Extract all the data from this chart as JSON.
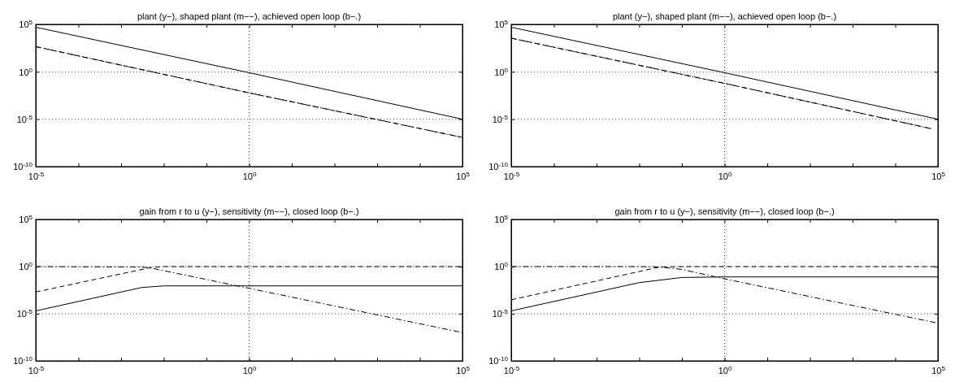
{
  "chart_data": [
    {
      "type": "line",
      "title": "plant (y−), shaped plant (m−−), achieved open loop (b−.)",
      "log": "xy",
      "grid": true,
      "xlim": [
        1e-05,
        100000.0
      ],
      "ylim": [
        1e-10,
        100000.0
      ],
      "xticks": [
        {
          "value": 1e-05,
          "label": "10$^{-5}$"
        },
        {
          "value": 0.0001,
          "label": null
        },
        {
          "value": 0.001,
          "label": null
        },
        {
          "value": 0.01,
          "label": null
        },
        {
          "value": 0.1,
          "label": null
        },
        {
          "value": 1,
          "label": "10$^{0}$"
        },
        {
          "value": 10,
          "label": null
        },
        {
          "value": 100,
          "label": null
        },
        {
          "value": 1000,
          "label": null
        },
        {
          "value": 10000,
          "label": null
        },
        {
          "value": 100000.0,
          "label": "10$^{5}$"
        }
      ],
      "yticks": [
        {
          "value": 1e-10,
          "label": "10$^{-10}$"
        },
        {
          "value": 1e-05,
          "label": "10$^{-5}$"
        },
        {
          "value": 1,
          "label": "10$^{0}$"
        },
        {
          "value": 100000.0,
          "label": "10$^{5}$"
        }
      ],
      "series": [
        {
          "color": "#000000",
          "line_style": "solid",
          "x": [
            1e-05,
            1,
            100000.0
          ],
          "values": [
            50000.0,
            0.8,
            1e-05
          ]
        },
        {
          "color": "#000000",
          "line_style": "dashed",
          "x": [
            1e-05,
            1,
            100000.0
          ],
          "values": [
            450,
            0.006,
            1.2e-07
          ]
        },
        {
          "color": "#000000",
          "line_style": "dashdot",
          "x": [
            1e-05,
            1,
            100000.0
          ],
          "values": [
            450,
            0.006,
            1.2e-07
          ]
        }
      ]
    },
    {
      "type": "line",
      "title": "plant (y−), shaped plant (m−−), achieved open loop (b−.)",
      "log": "xy",
      "grid": true,
      "xlim": [
        1e-05,
        100000.0
      ],
      "ylim": [
        1e-10,
        100000.0
      ],
      "xticks": [
        {
          "value": 1e-05,
          "label": "10$^{-5}$"
        },
        {
          "value": 0.0001,
          "label": null
        },
        {
          "value": 0.001,
          "label": null
        },
        {
          "value": 0.01,
          "label": null
        },
        {
          "value": 0.1,
          "label": null
        },
        {
          "value": 1,
          "label": "10$^{0}$"
        },
        {
          "value": 10,
          "label": null
        },
        {
          "value": 100,
          "label": null
        },
        {
          "value": 1000,
          "label": null
        },
        {
          "value": 10000,
          "label": null
        },
        {
          "value": 100000.0,
          "label": "10$^{5}$"
        }
      ],
      "yticks": [
        {
          "value": 1e-10,
          "label": "10$^{-10}$"
        },
        {
          "value": 1e-05,
          "label": "10$^{-5}$"
        },
        {
          "value": 1,
          "label": "10$^{0}$"
        },
        {
          "value": 100000.0,
          "label": "10$^{5}$"
        }
      ],
      "series": [
        {
          "color": "#000000",
          "line_style": "solid",
          "x": [
            1e-05,
            1,
            100000.0
          ],
          "values": [
            50000.0,
            0.8,
            1e-05
          ]
        },
        {
          "color": "#000000",
          "line_style": "dashed",
          "x": [
            1e-05,
            1,
            70000.0
          ],
          "values": [
            3500,
            0.06,
            1e-06
          ]
        },
        {
          "color": "#000000",
          "line_style": "dashdot",
          "x": [
            1e-05,
            1,
            70000.0
          ],
          "values": [
            3500,
            0.06,
            1e-06
          ]
        }
      ]
    },
    {
      "type": "line",
      "title": "gain from r to u (y−), sensitivity (m−−), closed loop (b−.)",
      "log": "xy",
      "grid": true,
      "xlim": [
        1e-05,
        100000.0
      ],
      "ylim": [
        1e-10,
        100000.0
      ],
      "xticks": [
        {
          "value": 1e-05,
          "label": "10$^{-5}$"
        },
        {
          "value": 0.0001,
          "label": null
        },
        {
          "value": 0.001,
          "label": null
        },
        {
          "value": 0.01,
          "label": null
        },
        {
          "value": 0.1,
          "label": null
        },
        {
          "value": 1,
          "label": "10$^{0}$"
        },
        {
          "value": 10,
          "label": null
        },
        {
          "value": 100,
          "label": null
        },
        {
          "value": 1000,
          "label": null
        },
        {
          "value": 10000,
          "label": null
        },
        {
          "value": 100000.0,
          "label": "10$^{5}$"
        }
      ],
      "yticks": [
        {
          "value": 1e-10,
          "label": "10$^{-10}$"
        },
        {
          "value": 1e-05,
          "label": "10$^{-5}$"
        },
        {
          "value": 1,
          "label": "10$^{0}$"
        },
        {
          "value": 100000.0,
          "label": "10$^{5}$"
        }
      ],
      "series": [
        {
          "color": "#000000",
          "line_style": "solid",
          "x": [
            1e-05,
            0.001,
            0.003,
            0.01,
            100000.0
          ],
          "values": [
            2e-05,
            0.002,
            0.006,
            0.009,
            0.009
          ]
        },
        {
          "color": "#000000",
          "line_style": "dashed",
          "x": [
            1e-05,
            0.005,
            0.01,
            100000.0
          ],
          "values": [
            0.002,
            0.8,
            1,
            1
          ]
        },
        {
          "color": "#000000",
          "line_style": "dashdot",
          "x": [
            1e-05,
            0.003,
            0.005,
            1,
            100000.0
          ],
          "values": [
            1,
            0.9,
            0.7,
            0.005,
            1e-07
          ]
        }
      ]
    },
    {
      "type": "line",
      "title": "gain from r to u (y−), sensitivity (m−−), closed loop (b−.)",
      "log": "xy",
      "grid": true,
      "xlim": [
        1e-05,
        100000.0
      ],
      "ylim": [
        1e-10,
        100000.0
      ],
      "xticks": [
        {
          "value": 1e-05,
          "label": "10$^{-5}$"
        },
        {
          "value": 0.0001,
          "label": null
        },
        {
          "value": 0.001,
          "label": null
        },
        {
          "value": 0.01,
          "label": null
        },
        {
          "value": 0.1,
          "label": null
        },
        {
          "value": 1,
          "label": "10$^{0}$"
        },
        {
          "value": 10,
          "label": null
        },
        {
          "value": 100,
          "label": null
        },
        {
          "value": 1000,
          "label": null
        },
        {
          "value": 10000,
          "label": null
        },
        {
          "value": 100000.0,
          "label": "10$^{5}$"
        }
      ],
      "yticks": [
        {
          "value": 1e-10,
          "label": "10$^{-10}$"
        },
        {
          "value": 1e-05,
          "label": "10$^{-5}$"
        },
        {
          "value": 1,
          "label": "10$^{0}$"
        },
        {
          "value": 100000.0,
          "label": "10$^{5}$"
        }
      ],
      "series": [
        {
          "color": "#000000",
          "line_style": "solid",
          "x": [
            1e-05,
            0.01,
            0.1,
            1,
            100000.0
          ],
          "values": [
            2e-05,
            0.02,
            0.07,
            0.08,
            0.08
          ]
        },
        {
          "color": "#000000",
          "line_style": "dashed",
          "x": [
            1e-05,
            0.01,
            0.03,
            0.1,
            100000.0
          ],
          "values": [
            0.0003,
            0.3,
            0.9,
            1,
            1
          ]
        },
        {
          "color": "#000000",
          "line_style": "dashdot",
          "x": [
            1e-05,
            0.01,
            0.03,
            0.1,
            1,
            100000.0
          ],
          "values": [
            1,
            1,
            0.9,
            0.5,
            0.05,
            1e-06
          ]
        }
      ]
    }
  ]
}
